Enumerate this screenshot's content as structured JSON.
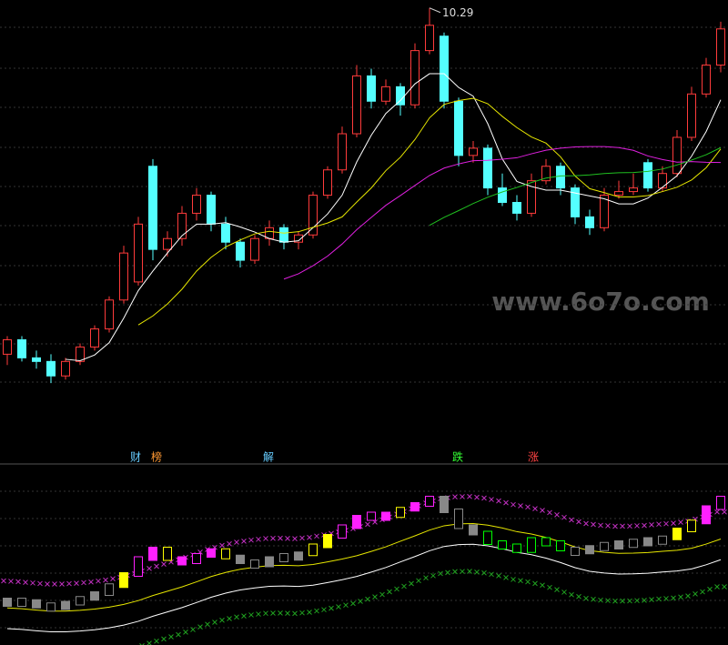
{
  "chart_data": {
    "type": "candlestick",
    "watermark": "www.6o7o.com",
    "signals": [
      "财",
      "榜",
      "解",
      "跌",
      "涨"
    ],
    "ylim": [
      4.8,
      10.4
    ],
    "up_color": "#ff3b3b",
    "down_color": "#54ffff",
    "open": [
      5.5,
      5.7,
      5.45,
      5.4,
      5.2,
      5.4,
      5.6,
      5.85,
      6.25,
      6.5,
      8.1,
      6.95,
      7.1,
      7.45,
      7.7,
      7.3,
      7.05,
      6.8,
      7.1,
      7.25,
      7.05,
      7.15,
      7.7,
      8.05,
      8.55,
      9.35,
      9.0,
      9.2,
      8.95,
      9.7,
      9.9,
      9.0,
      8.25,
      8.35,
      7.8,
      7.6,
      7.45,
      7.9,
      8.1,
      7.8,
      7.4,
      7.25,
      7.7,
      7.75,
      8.15,
      7.8,
      8.0,
      8.5,
      9.1,
      9.5
    ],
    "high": [
      5.75,
      5.75,
      5.55,
      5.5,
      5.45,
      5.65,
      5.9,
      6.3,
      7.0,
      7.4,
      8.2,
      7.2,
      7.55,
      7.8,
      7.75,
      7.4,
      7.1,
      7.15,
      7.35,
      7.3,
      7.2,
      7.75,
      8.1,
      8.65,
      9.5,
      9.45,
      9.3,
      9.25,
      9.8,
      10.29,
      9.95,
      9.05,
      8.45,
      8.4,
      8.0,
      7.7,
      8.0,
      8.2,
      8.15,
      7.85,
      7.5,
      7.8,
      7.9,
      8.0,
      8.2,
      8.1,
      8.6,
      9.2,
      9.6,
      10.1
    ],
    "low": [
      5.35,
      5.4,
      5.3,
      5.1,
      5.15,
      5.35,
      5.55,
      5.8,
      6.2,
      6.45,
      6.8,
      6.85,
      7.0,
      7.35,
      7.2,
      6.95,
      6.7,
      6.75,
      7.0,
      6.95,
      6.95,
      7.1,
      7.65,
      8.0,
      8.5,
      8.9,
      8.95,
      8.8,
      8.9,
      9.65,
      8.9,
      8.1,
      8.15,
      7.7,
      7.55,
      7.35,
      7.4,
      7.85,
      7.7,
      7.3,
      7.15,
      7.2,
      7.65,
      7.7,
      7.75,
      7.75,
      7.95,
      8.45,
      9.05,
      9.4
    ],
    "close": [
      5.7,
      5.45,
      5.4,
      5.2,
      5.4,
      5.6,
      5.85,
      6.25,
      6.9,
      7.3,
      6.95,
      7.1,
      7.45,
      7.7,
      7.3,
      7.05,
      6.8,
      7.1,
      7.25,
      7.05,
      7.15,
      7.7,
      8.05,
      8.55,
      9.35,
      9.0,
      9.2,
      8.95,
      9.7,
      10.05,
      9.0,
      8.25,
      8.35,
      7.8,
      7.6,
      7.45,
      7.9,
      8.1,
      7.8,
      7.4,
      7.25,
      7.7,
      7.75,
      7.8,
      7.8,
      8.0,
      8.5,
      9.1,
      9.5,
      10.0
    ],
    "moving_averages": [
      {
        "period": 5,
        "color": "#ffffff"
      },
      {
        "period": 10,
        "color": "#e6e600"
      },
      {
        "period": 20,
        "color": "#e020e0"
      },
      {
        "period": 30,
        "color": "#20c020"
      }
    ],
    "indicator": {
      "ylim": [
        0,
        100
      ],
      "values": [
        26,
        25,
        23,
        22,
        24,
        27,
        30,
        35,
        42,
        52,
        58,
        52,
        50,
        54,
        57,
        53,
        50,
        48,
        52,
        54,
        55,
        60,
        66,
        72,
        78,
        80,
        79,
        83,
        86,
        90,
        82,
        72,
        68,
        62,
        60,
        57,
        64,
        62,
        58,
        58,
        59,
        61,
        62,
        63,
        64,
        65,
        70,
        75,
        84,
        90
      ],
      "colors": [
        "#888888",
        "#888888",
        "#888888",
        "#888888",
        "#888888",
        "#888888",
        "#888888",
        "#888888",
        "#ffff00",
        "#ff20ff",
        "#ff20ff",
        "#ffff00",
        "#ff20ff",
        "#ff20ff",
        "#ff20ff",
        "#ffff00",
        "#888888",
        "#888888",
        "#888888",
        "#888888",
        "#888888",
        "#ffff00",
        "#ffff00",
        "#ff20ff",
        "#ff20ff",
        "#ff20ff",
        "#ff20ff",
        "#ffff00",
        "#ff20ff",
        "#ff20ff",
        "#888888",
        "#888888",
        "#888888",
        "#00ff00",
        "#00ff00",
        "#00ff00",
        "#00ff00",
        "#00ff00",
        "#00ff00",
        "#888888",
        "#888888",
        "#888888",
        "#888888",
        "#888888",
        "#888888",
        "#888888",
        "#ffff00",
        "#ffff00",
        "#ff20ff",
        "#ff20ff"
      ],
      "bands": [
        {
          "offset": 12,
          "color": "#c030c0",
          "style": "cross"
        },
        {
          "offset": -5,
          "color": "#e6e600",
          "style": "line"
        },
        {
          "offset": -18,
          "color": "#ffffff",
          "style": "line"
        },
        {
          "offset": -35,
          "color": "#20a020",
          "style": "cross"
        }
      ]
    }
  }
}
